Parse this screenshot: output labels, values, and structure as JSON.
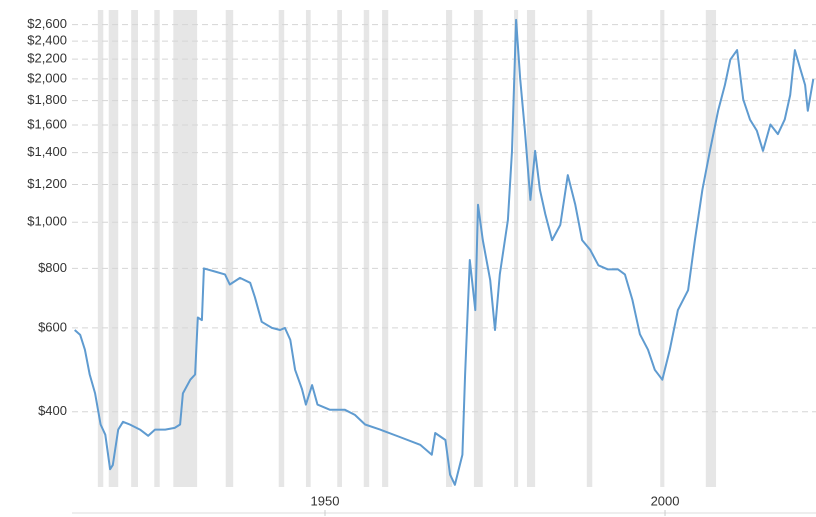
{
  "chart_data": {
    "type": "line",
    "log_y": true,
    "grid": true,
    "xlim": [
      1912.8,
      2022.2
    ],
    "xticks": [
      1950,
      2000
    ],
    "ylim": [
      278,
      2790
    ],
    "yticks": [
      {
        "value": 400,
        "label": "$400"
      },
      {
        "value": 600,
        "label": "$600"
      },
      {
        "value": 800,
        "label": "$800"
      },
      {
        "value": 1000,
        "label": "$1,000"
      },
      {
        "value": 1200,
        "label": "$1,200"
      },
      {
        "value": 1400,
        "label": "$1,400"
      },
      {
        "value": 1600,
        "label": "$1,600"
      },
      {
        "value": 1800,
        "label": "$1,800"
      },
      {
        "value": 2000,
        "label": "$2,000"
      },
      {
        "value": 2200,
        "label": "$2,200"
      },
      {
        "value": 2400,
        "label": "$2,400"
      },
      {
        "value": 2600,
        "label": "$2,600"
      }
    ],
    "recession_color": "#e6e6e6",
    "recessions": [
      [
        1916.6,
        1917.4
      ],
      [
        1918.2,
        1919.6
      ],
      [
        1921.5,
        1922.5
      ],
      [
        1924.9,
        1925.7
      ],
      [
        1927.7,
        1931.2
      ],
      [
        1935.4,
        1936.5
      ],
      [
        1943.2,
        1944.0
      ],
      [
        1947.2,
        1947.9
      ],
      [
        1951.8,
        1952.5
      ],
      [
        1955.7,
        1956.5
      ],
      [
        1958.4,
        1959.3
      ],
      [
        1967.8,
        1968.7
      ],
      [
        1971.9,
        1973.2
      ],
      [
        1977.8,
        1978.4
      ],
      [
        1979.7,
        1980.9
      ],
      [
        1988.5,
        1989.3
      ],
      [
        1999.3,
        1999.9
      ],
      [
        2006.0,
        2007.5
      ]
    ],
    "color": "#5f9bd0",
    "x": [
      1913.2,
      1914,
      1914.7,
      1915.4,
      1916.2,
      1917,
      1917.7,
      1918.4,
      1918.8,
      1919.6,
      1920.3,
      1921.3,
      1922.8,
      1924,
      1925,
      1926.5,
      1927.9,
      1928.7,
      1929.1,
      1930.2,
      1930.9,
      1931.3,
      1931.9,
      1932.2,
      1933.8,
      1935.3,
      1936,
      1937.5,
      1939,
      1939.7,
      1940.7,
      1942.2,
      1943.4,
      1944.1,
      1944.9,
      1945.6,
      1946.6,
      1947.2,
      1948.1,
      1948.9,
      1950.7,
      1952.9,
      1954.4,
      1955.9,
      1958.1,
      1961,
      1964,
      1965.7,
      1966.2,
      1967.7,
      1968.4,
      1969.1,
      1970.2,
      1970.6,
      1971.3,
      1972.1,
      1972.5,
      1973.2,
      1974.3,
      1975,
      1975.7,
      1976.9,
      1977.5,
      1978.1,
      1978.7,
      1979.4,
      1980.2,
      1980.9,
      1981.6,
      1982.4,
      1983.4,
      1984.6,
      1985.7,
      1986.8,
      1987.8,
      1989,
      1990.2,
      1991.6,
      1993.1,
      1994.1,
      1995.2,
      1996.3,
      1997.5,
      1998.5,
      1999.6,
      2000.7,
      2001.9,
      2003.4,
      2004.4,
      2005.5,
      2006.6,
      2007.8,
      2008.8,
      2009.6,
      2010.6,
      2011.5,
      2012.5,
      2013.5,
      2014.4,
      2015.5,
      2016.6,
      2017.6,
      2018.4,
      2019.1,
      2019.9,
      2020.6,
      2021,
      2021.8
    ],
    "values": [
      594,
      580,
      540,
      479,
      437,
      376,
      358,
      303,
      309,
      367,
      381,
      376,
      367,
      356,
      367,
      367,
      370,
      376,
      437,
      467,
      479,
      631,
      623,
      800,
      788,
      777,
      740,
      764,
      746,
      696,
      618,
      600,
      594,
      600,
      566,
      490,
      447,
      414,
      455,
      414,
      404,
      404,
      394,
      376,
      367,
      354,
      341,
      325,
      361,
      349,
      295,
      281,
      325,
      479,
      833,
      654,
      1088,
      917,
      756,
      594,
      777,
      1011,
      1412,
      2660,
      1998,
      1557,
      1114,
      1412,
      1170,
      1040,
      917,
      987,
      1256,
      1088,
      917,
      875,
      812,
      796,
      796,
      777,
      687,
      582,
      540,
      490,
      467,
      540,
      654,
      720,
      917,
      1170,
      1412,
      1714,
      1941,
      2194,
      2298,
      1812,
      1642,
      1557,
      1412,
      1604,
      1531,
      1642,
      1850,
      2298,
      2096,
      1941,
      1714,
      1998
    ]
  }
}
